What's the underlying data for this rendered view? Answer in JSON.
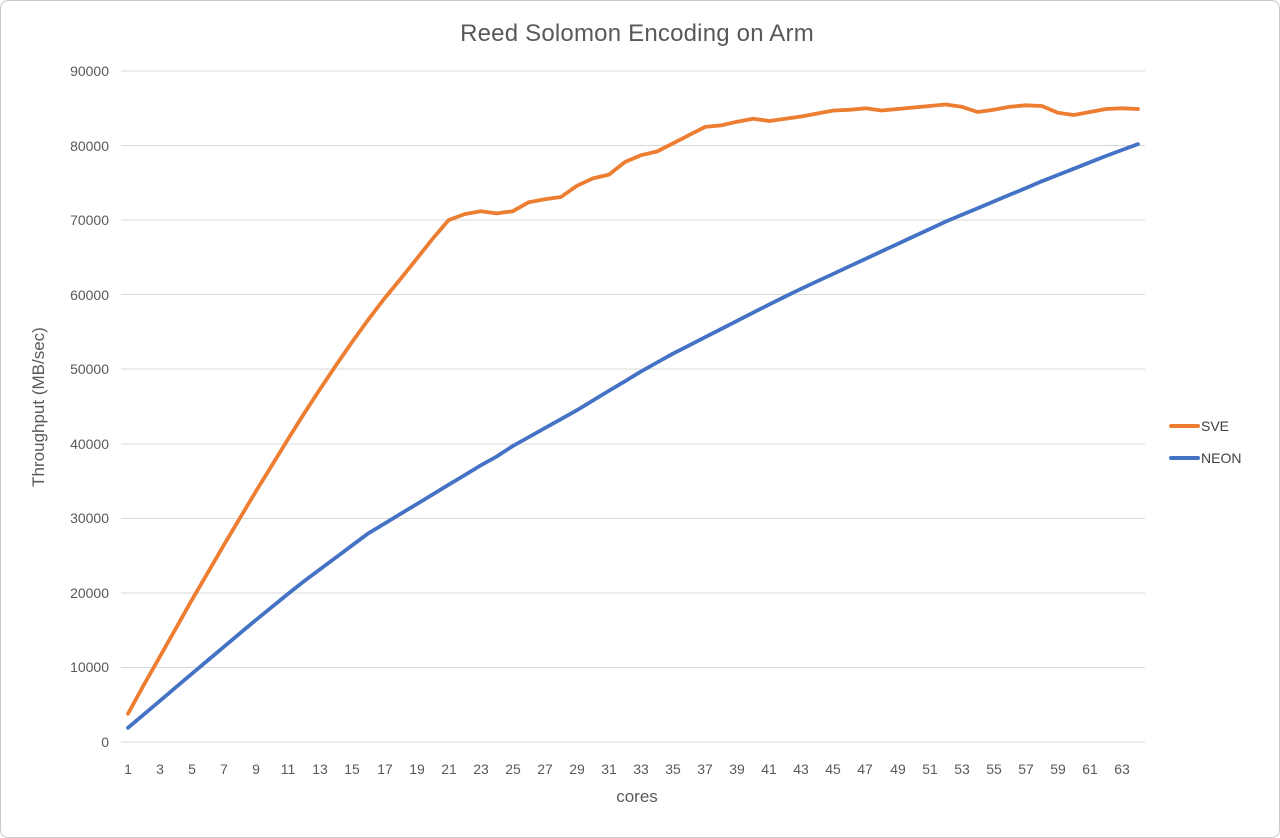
{
  "chart_data": {
    "type": "line",
    "title": "Reed Solomon Encoding on Arm",
    "xlabel": "cores",
    "ylabel": "Throughput (MB/sec)",
    "x": [
      1,
      2,
      3,
      4,
      5,
      6,
      7,
      8,
      9,
      10,
      11,
      12,
      13,
      14,
      15,
      16,
      17,
      18,
      19,
      20,
      21,
      22,
      23,
      24,
      25,
      26,
      27,
      28,
      29,
      30,
      31,
      32,
      33,
      34,
      35,
      36,
      37,
      38,
      39,
      40,
      41,
      42,
      43,
      44,
      45,
      46,
      47,
      48,
      49,
      50,
      51,
      52,
      53,
      54,
      55,
      56,
      57,
      58,
      59,
      60,
      61,
      62,
      63,
      64
    ],
    "x_tick_labels": [
      1,
      3,
      5,
      7,
      9,
      11,
      13,
      15,
      17,
      19,
      21,
      23,
      25,
      27,
      29,
      31,
      33,
      35,
      37,
      39,
      41,
      43,
      45,
      47,
      49,
      51,
      53,
      55,
      57,
      59,
      61,
      63
    ],
    "y_ticks": [
      0,
      10000,
      20000,
      30000,
      40000,
      50000,
      60000,
      70000,
      80000,
      90000
    ],
    "ylim": [
      0,
      90000
    ],
    "grid": "horizontal",
    "legend_position": "right",
    "series": [
      {
        "name": "SVE",
        "color": "#ED7D31",
        "values": [
          3800,
          7700,
          11500,
          15300,
          19100,
          22800,
          26500,
          30100,
          33700,
          37200,
          40700,
          44100,
          47400,
          50600,
          53700,
          56700,
          59500,
          62100,
          64800,
          67500,
          70000,
          70800,
          71200,
          70900,
          71200,
          72400,
          72800,
          73100,
          74600,
          75600,
          76100,
          77800,
          78700,
          79200,
          80300,
          81400,
          82500,
          82700,
          83200,
          83600,
          83300,
          83600,
          83900,
          84300,
          84700,
          84800,
          85000,
          84700,
          84900,
          85100,
          85300,
          85500,
          85200,
          84500,
          84800,
          85200,
          85400,
          85300,
          84400,
          84100,
          84500,
          84900,
          85000,
          84900
        ]
      },
      {
        "name": "NEON",
        "color": "#4472C4",
        "values": [
          1900,
          3720,
          5540,
          7360,
          9180,
          11000,
          12800,
          14600,
          16400,
          18150,
          19900,
          21600,
          23200,
          24800,
          26400,
          28000,
          29300,
          30600,
          31900,
          33200,
          34500,
          35800,
          37100,
          38300,
          39700,
          40900,
          42100,
          43300,
          44500,
          45800,
          47100,
          48400,
          49700,
          50900,
          52100,
          53200,
          54300,
          55400,
          56500,
          57600,
          58700,
          59750,
          60800,
          61800,
          62800,
          63800,
          64800,
          65800,
          66800,
          67800,
          68800,
          69800,
          70700,
          71600,
          72500,
          73400,
          74300,
          75200,
          76050,
          76900,
          77750,
          78600,
          79400,
          80200
        ]
      }
    ],
    "appearance": {
      "gridline_color": "#D9D9D9",
      "axis_text_color": "#595959",
      "title_color": "#595959",
      "background_color": "#FFFFFF"
    }
  }
}
